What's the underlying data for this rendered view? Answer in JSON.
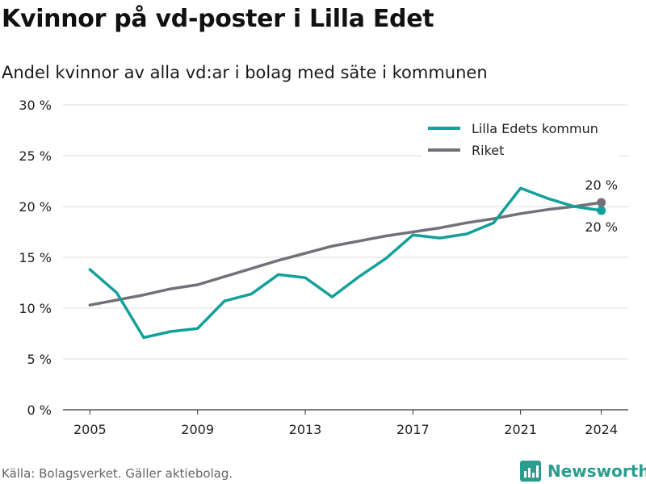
{
  "title": "Kvinnor på vd-poster i Lilla Edet",
  "subtitle": "Andel kvinnor av alla vd:ar i bolag med säte i kommunen",
  "source": "Källa: Bolagsverket. Gäller aktiebolag.",
  "brand": {
    "name": "Newsworthy",
    "color": "#2a9d8f",
    "icon": "bar-chart-icon"
  },
  "chart_data": {
    "type": "line",
    "title": "",
    "xlabel": "",
    "ylabel": "",
    "ylim": [
      0,
      30
    ],
    "xlim": [
      2004,
      2025
    ],
    "grid": true,
    "legend_position": "top-right",
    "y_ticks": [
      {
        "value": 0,
        "label": "0 %"
      },
      {
        "value": 5,
        "label": "5 %"
      },
      {
        "value": 10,
        "label": "10 %"
      },
      {
        "value": 15,
        "label": "15 %"
      },
      {
        "value": 20,
        "label": "20 %"
      },
      {
        "value": 25,
        "label": "25 %"
      },
      {
        "value": 30,
        "label": "30 %"
      }
    ],
    "x_ticks": [
      {
        "value": 2005,
        "label": "2005"
      },
      {
        "value": 2009,
        "label": "2009"
      },
      {
        "value": 2013,
        "label": "2013"
      },
      {
        "value": 2017,
        "label": "2017"
      },
      {
        "value": 2021,
        "label": "2021"
      },
      {
        "value": 2024,
        "label": "2024"
      }
    ],
    "x": [
      2005,
      2006,
      2007,
      2008,
      2009,
      2010,
      2011,
      2012,
      2013,
      2014,
      2015,
      2016,
      2017,
      2018,
      2019,
      2020,
      2021,
      2022,
      2023,
      2024
    ],
    "series": [
      {
        "name": "Lilla Edets kommun",
        "color": "#14a09a",
        "values": [
          13.8,
          11.5,
          7.1,
          7.7,
          8.0,
          10.7,
          11.4,
          13.3,
          13.0,
          11.1,
          13.1,
          14.9,
          17.2,
          16.9,
          17.3,
          18.4,
          21.8,
          20.8,
          20.0,
          19.6
        ],
        "end_label": "20 %"
      },
      {
        "name": "Riket",
        "color": "#737178",
        "values": [
          10.3,
          10.8,
          11.3,
          11.9,
          12.3,
          13.1,
          13.9,
          14.7,
          15.4,
          16.1,
          16.6,
          17.1,
          17.5,
          17.9,
          18.4,
          18.8,
          19.3,
          19.7,
          20.0,
          20.4
        ],
        "end_label": "20 %"
      }
    ]
  }
}
